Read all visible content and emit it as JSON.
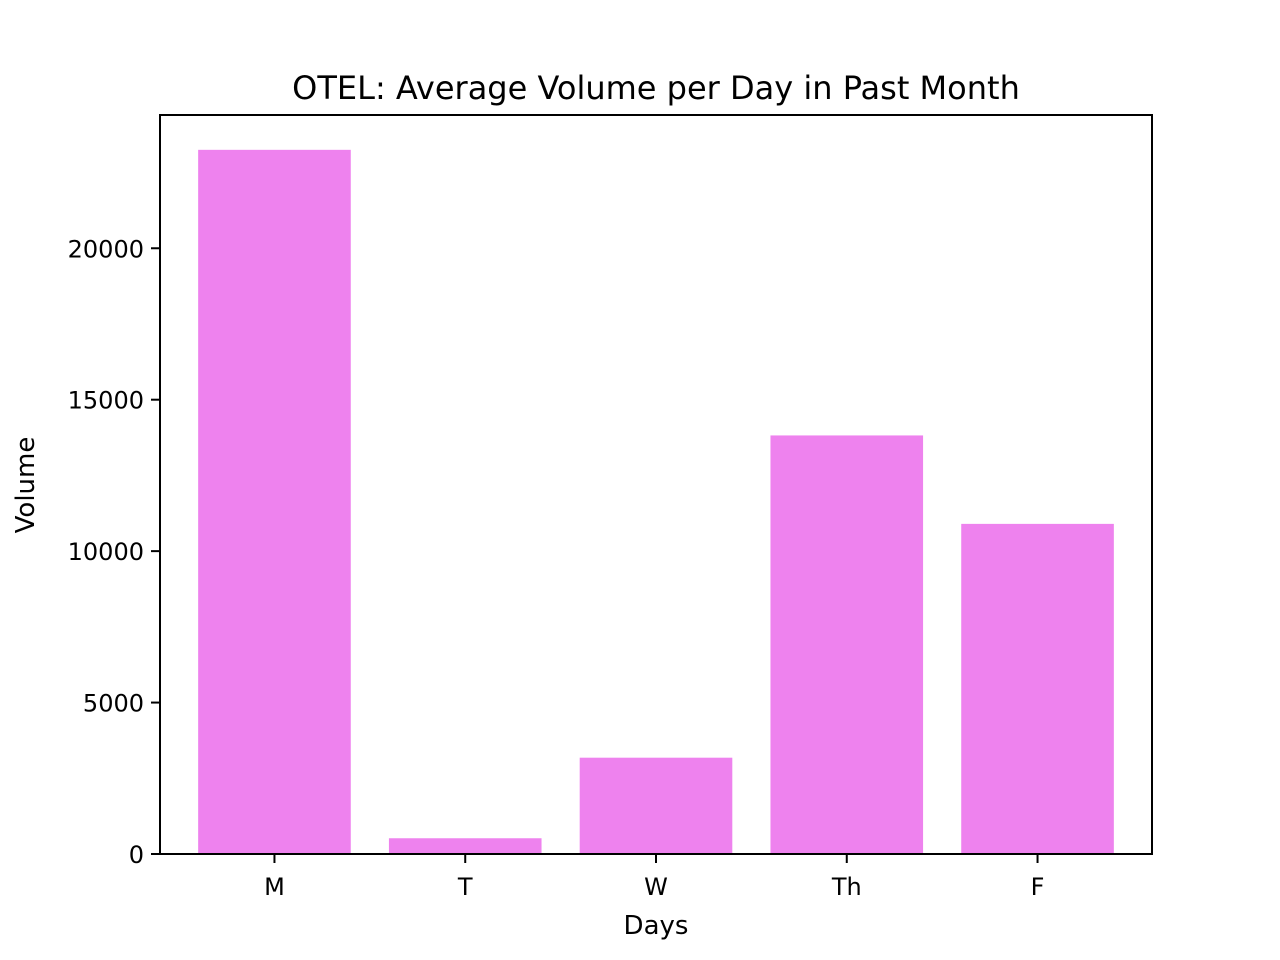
{
  "chart_data": {
    "type": "bar",
    "title": "OTEL: Average Volume per Day in Past Month",
    "xlabel": "Days",
    "ylabel": "Volume",
    "categories": [
      "M",
      "T",
      "W",
      "Th",
      "F"
    ],
    "values": [
      23250,
      520,
      3180,
      13820,
      10900
    ],
    "ylim": [
      0,
      24400
    ],
    "yticks": [
      0,
      5000,
      10000,
      15000,
      20000
    ],
    "ytick_labels": [
      "0",
      "5000",
      "10000",
      "15000",
      "20000"
    ],
    "bar_color": "#ee82ee",
    "grid": false,
    "legend": "none"
  }
}
